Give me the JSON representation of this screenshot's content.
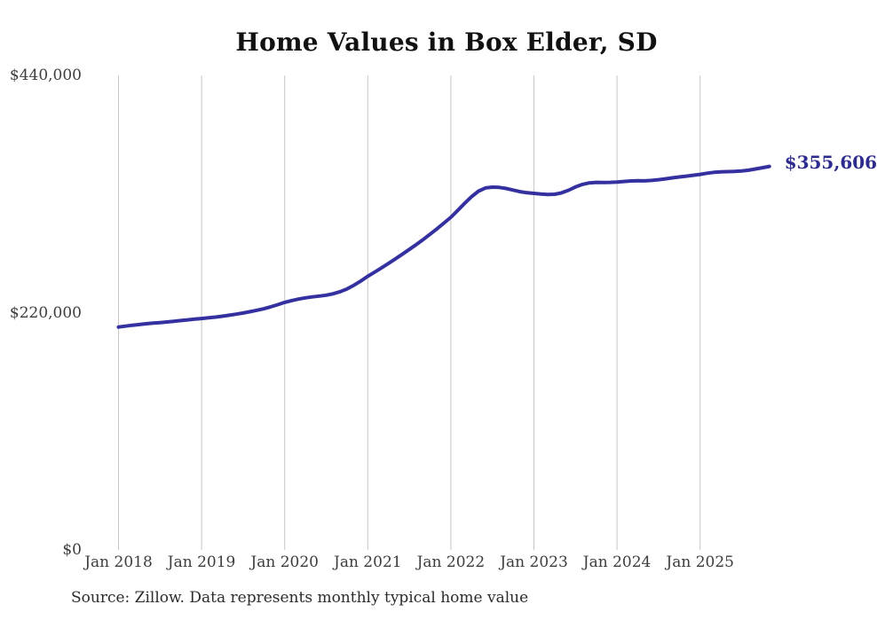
{
  "title": "Home Values in Box Elder, SD",
  "source_note": "Source: Zillow. Data represents monthly typical home value",
  "colors": {
    "line": "#34309f",
    "end_label": "#2e2b8f",
    "gridline": "#c6c6c6",
    "axis_text": "#3d3d3d",
    "title_text": "#111111",
    "background": "#ffffff"
  },
  "chart_data": {
    "type": "line",
    "title": "Home Values in Box Elder, SD",
    "xlabel": "",
    "ylabel": "",
    "ylim": [
      0,
      440000
    ],
    "grid": "vertical-only",
    "legend": "none",
    "annotation_end_value": "$355,606",
    "x_ticks": [
      "Jan 2018",
      "Jan 2019",
      "Jan 2020",
      "Jan 2021",
      "Jan 2022",
      "Jan 2023",
      "Jan 2024",
      "Jan 2025"
    ],
    "y_ticks": [
      {
        "label": "$440,000",
        "value": 440000
      },
      {
        "label": "$220,000",
        "value": 220000
      },
      {
        "label": "$0",
        "value": 0
      }
    ],
    "series": [
      {
        "name": "Monthly typical home value",
        "start_month": "2018-01",
        "frequency": "monthly",
        "values": [
          206700,
          207500,
          208300,
          209000,
          209700,
          210300,
          210800,
          211400,
          212000,
          212700,
          213300,
          214000,
          214600,
          215200,
          215900,
          216700,
          217600,
          218600,
          219700,
          220900,
          222200,
          223600,
          225400,
          227400,
          229500,
          231200,
          232600,
          233700,
          234600,
          235400,
          236200,
          237500,
          239400,
          242000,
          245400,
          249400,
          253700,
          257600,
          261600,
          265700,
          269900,
          274200,
          278600,
          283100,
          287800,
          292700,
          297800,
          303100,
          308400,
          314800,
          321400,
          327600,
          332700,
          335600,
          336400,
          336100,
          335100,
          333700,
          332200,
          331200,
          330600,
          330000,
          329600,
          329800,
          331100,
          333500,
          336500,
          338900,
          340300,
          340800,
          340700,
          340800,
          341100,
          341600,
          342100,
          342400,
          342200,
          342600,
          343300,
          344100,
          345000,
          345800,
          346600,
          347400,
          348200,
          349300,
          350100,
          350600,
          350800,
          351000,
          351400,
          352100,
          353200,
          354400,
          355606
        ]
      }
    ]
  }
}
